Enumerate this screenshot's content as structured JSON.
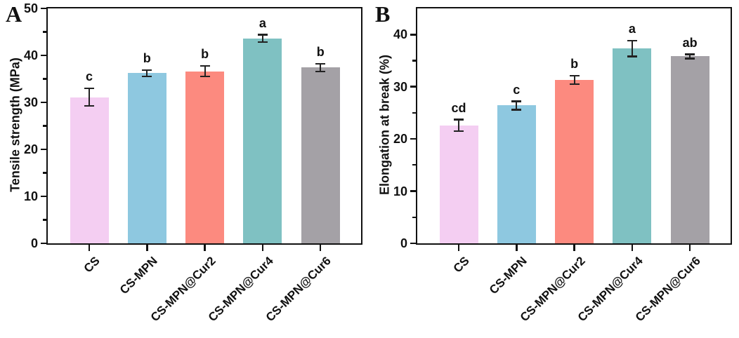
{
  "figure_title": "",
  "chart_data": [
    {
      "type": "bar",
      "panel_label": "A",
      "title": "",
      "xlabel": "",
      "ylabel": "Tensile strength (MPa)",
      "categories": [
        "CS",
        "CS-MPN",
        "CS-MPN@Cur2",
        "CS-MPN@Cur4",
        "CS-MPN@Cur6"
      ],
      "values": [
        31.1,
        36.2,
        36.6,
        43.6,
        37.4
      ],
      "errors": [
        1.9,
        0.7,
        1.1,
        0.8,
        0.8
      ],
      "sig_letters": [
        "c",
        "b",
        "b",
        "a",
        "b"
      ],
      "bar_colors": [
        "#f4cef2",
        "#8ec8e0",
        "#fc8a7f",
        "#7fc1c2",
        "#a4a1a6"
      ],
      "ylim": [
        0,
        50
      ],
      "yticks": [
        0,
        10,
        20,
        30,
        40,
        50
      ],
      "minor_yticks": [
        5,
        15,
        25,
        35,
        45
      ],
      "grid": "off",
      "legend": "none",
      "axis_color": "#111111"
    },
    {
      "type": "bar",
      "panel_label": "B",
      "title": "",
      "xlabel": "",
      "ylabel": "Elongation at break (%)",
      "categories": [
        "CS",
        "CS-MPN",
        "CS-MPN@Cur2",
        "CS-MPN@Cur4",
        "CS-MPN@Cur6"
      ],
      "values": [
        22.6,
        26.4,
        31.3,
        37.3,
        35.8
      ],
      "errors": [
        1.1,
        0.8,
        0.8,
        1.5,
        0.4
      ],
      "sig_letters": [
        "cd",
        "c",
        "b",
        "a",
        "ab"
      ],
      "bar_colors": [
        "#f4cef2",
        "#8ec8e0",
        "#fc8a7f",
        "#7fc1c2",
        "#a4a1a6"
      ],
      "ylim": [
        0,
        45
      ],
      "yticks": [
        0,
        10,
        20,
        30,
        40
      ],
      "minor_yticks": [
        5,
        15,
        25,
        35
      ],
      "grid": "off",
      "legend": "none",
      "axis_color": "#111111"
    }
  ]
}
